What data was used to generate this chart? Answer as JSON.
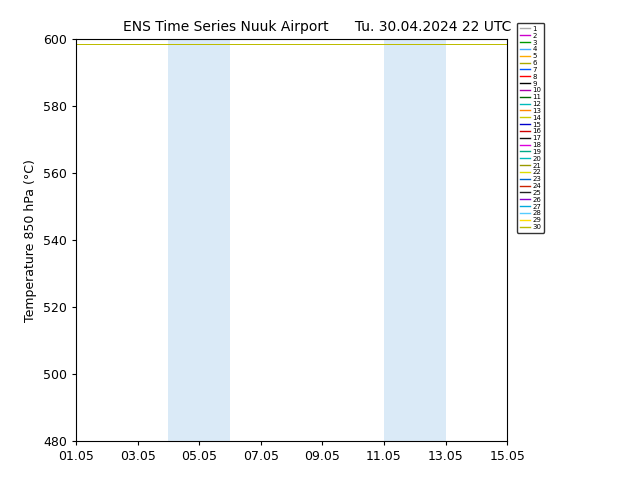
{
  "title_left": "ENS Time Series Nuuk Airport",
  "title_right": "Tu. 30.04.2024 22 UTC",
  "ylabel": "Temperature 850 hPa (°C)",
  "ylim": [
    480,
    600
  ],
  "yticks": [
    480,
    500,
    520,
    540,
    560,
    580,
    600
  ],
  "xtick_labels": [
    "01.05",
    "03.05",
    "05.05",
    "07.05",
    "09.05",
    "11.05",
    "13.05",
    "15.05"
  ],
  "xtick_positions": [
    0,
    2,
    4,
    6,
    8,
    10,
    12,
    14
  ],
  "xlim": [
    0,
    14
  ],
  "shaded_bands": [
    {
      "start": 3,
      "end": 5
    },
    {
      "start": 10,
      "end": 12
    }
  ],
  "shade_color": "#daeaf7",
  "ensemble_value": 598.5,
  "num_members": 30,
  "member_colors": [
    "#aaaaaa",
    "#cc00cc",
    "#009900",
    "#44aaff",
    "#ffaa00",
    "#aaaa00",
    "#0055ff",
    "#ff0000",
    "#000000",
    "#aa00aa",
    "#006600",
    "#00bbbb",
    "#ff8800",
    "#cccc00",
    "#0000cc",
    "#cc0000",
    "#111111",
    "#dd00dd",
    "#00aa88",
    "#00bbbb",
    "#999900",
    "#dddd00",
    "#0066cc",
    "#cc2200",
    "#222222",
    "#8800cc",
    "#00aadd",
    "#55ccff",
    "#ffdd00",
    "#bbbb00"
  ],
  "background_color": "#ffffff",
  "fig_width": 6.34,
  "fig_height": 4.9,
  "dpi": 100
}
